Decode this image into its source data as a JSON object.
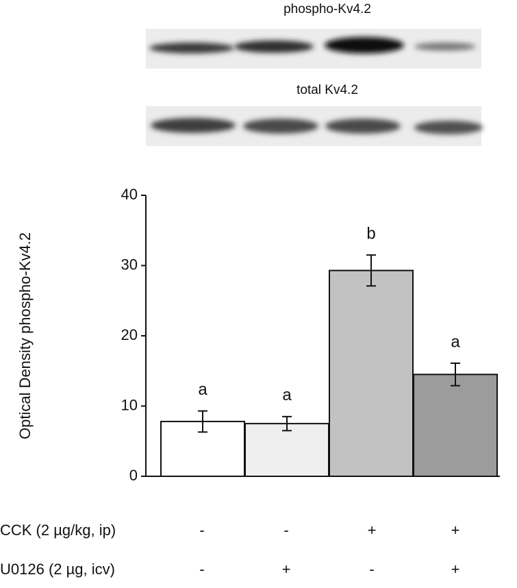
{
  "blots": [
    {
      "label": "phospho-Kv4.2"
    },
    {
      "label": "total Kv4.2"
    }
  ],
  "chart_data": {
    "type": "bar",
    "y_label": "Optical Density phospho-Kv4.2",
    "values": [
      7.8,
      7.5,
      29.3,
      14.5
    ],
    "errors": [
      1.5,
      1.0,
      2.2,
      1.6
    ],
    "colors": [
      "#ffffff",
      "#efefef",
      "#c2c2c2",
      "#9c9c9c"
    ],
    "letters": [
      "a",
      "a",
      "b",
      "a"
    ],
    "ylim": [
      0,
      40
    ],
    "yticks": [
      0,
      10,
      20,
      30,
      40
    ],
    "grid": false,
    "treatments": [
      {
        "name": "CCK (2 µg/kg, ip)",
        "signs": [
          "-",
          "-",
          "+",
          "+"
        ]
      },
      {
        "name": "U0126 (2 µg, icv)",
        "signs": [
          "-",
          "+",
          "-",
          "+"
        ]
      }
    ]
  }
}
